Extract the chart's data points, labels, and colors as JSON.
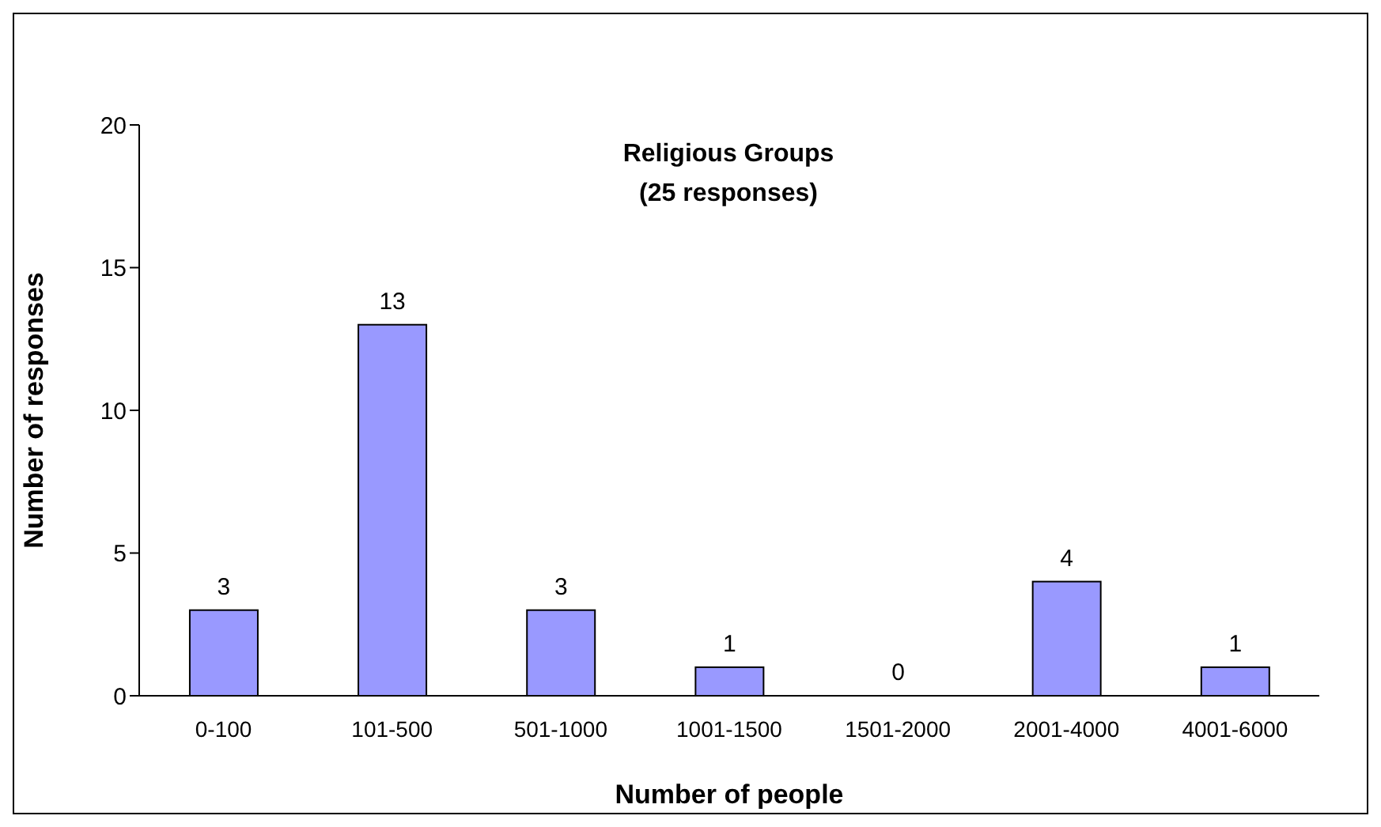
{
  "chart_data": {
    "type": "bar",
    "title": "Religious Groups",
    "subtitle": "(25 responses)",
    "xlabel": "Number of people",
    "ylabel": "Number of responses",
    "categories": [
      "0-100",
      "101-500",
      "501-1000",
      "1001-1500",
      "1501-2000",
      "2001-4000",
      "4001-6000"
    ],
    "values": [
      3,
      13,
      3,
      1,
      0,
      4,
      1
    ],
    "color": "#9999ff",
    "ylim": [
      0,
      20
    ],
    "yticks": [
      0,
      5,
      10,
      15,
      20
    ],
    "grid": false,
    "data_labels": true
  }
}
